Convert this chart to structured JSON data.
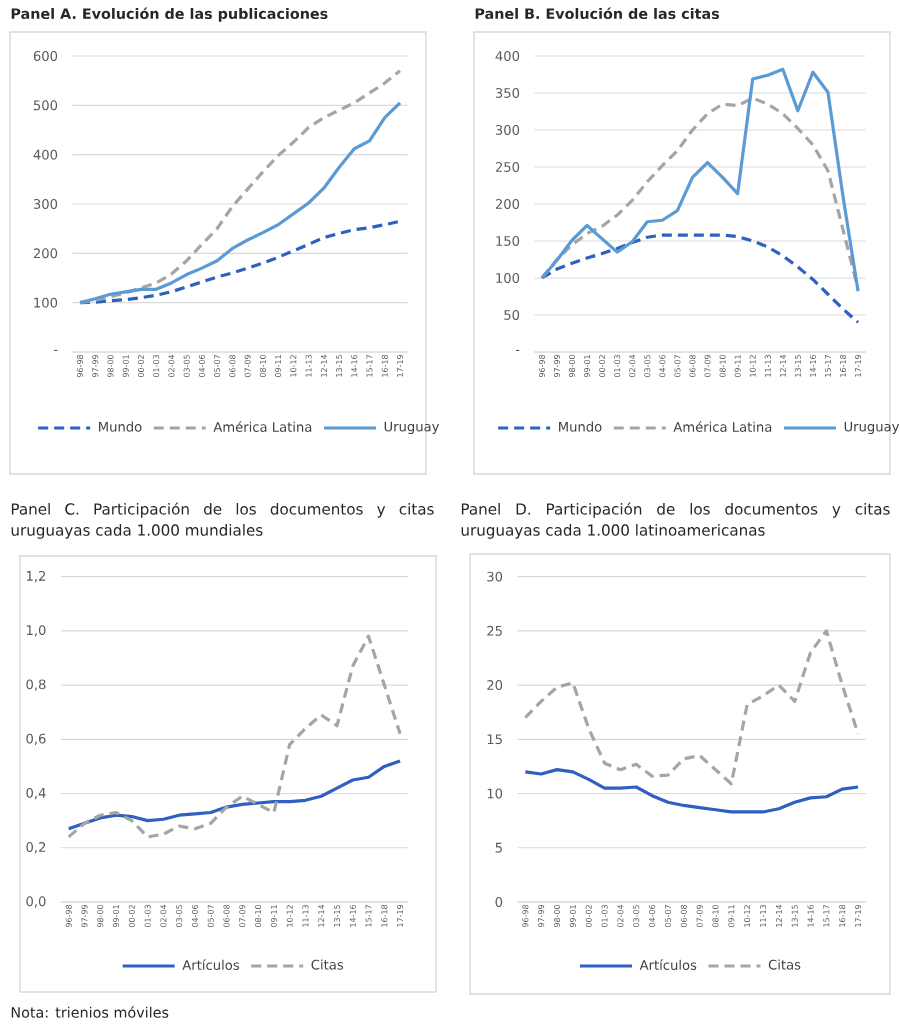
{
  "chart_data": [
    {
      "type": "line",
      "title": "Panel A. Evolución de las publicaciones",
      "categories": [
        "96-98",
        "97-99",
        "98-00",
        "99-01",
        "00-02",
        "01-03",
        "02-04",
        "03-05",
        "04-06",
        "05-07",
        "06-08",
        "07-09",
        "08-10",
        "09-11",
        "10-12",
        "11-13",
        "12-14",
        "13-15",
        "14-16",
        "15-17",
        "16-18",
        "17-19"
      ],
      "series": [
        {
          "name": "Mundo",
          "color": "#2f5fbf",
          "line_style": "dashed",
          "values": [
            100,
            101,
            104,
            106,
            110,
            115,
            122,
            132,
            142,
            152,
            160,
            170,
            180,
            192,
            205,
            218,
            232,
            240,
            248,
            252,
            258,
            265
          ]
        },
        {
          "name": "América Latina",
          "color": "#a5a5a5",
          "line_style": "dashed",
          "values": [
            100,
            105,
            112,
            120,
            130,
            140,
            158,
            185,
            218,
            250,
            295,
            330,
            365,
            398,
            425,
            455,
            475,
            490,
            505,
            525,
            545,
            570
          ]
        },
        {
          "name": "Uruguay",
          "color": "#5b9bd5",
          "line_style": "solid",
          "values": [
            100,
            108,
            117,
            122,
            127,
            127,
            140,
            157,
            170,
            185,
            210,
            227,
            242,
            258,
            280,
            302,
            332,
            374,
            412,
            428,
            475,
            505
          ]
        }
      ],
      "ylim": [
        0,
        600
      ],
      "yticks": [
        {
          "value": 0,
          "label": "-"
        },
        100,
        200,
        300,
        400,
        500,
        600
      ],
      "grid": "y",
      "legend": "bottom"
    },
    {
      "type": "line",
      "title": "Panel B. Evolución de las citas",
      "categories": [
        "96-98",
        "97-99",
        "98-00",
        "99-01",
        "00-02",
        "01-03",
        "02-04",
        "03-05",
        "04-06",
        "05-07",
        "06-08",
        "07-09",
        "08-10",
        "09-11",
        "10-12",
        "11-13",
        "12-14",
        "13-15",
        "14-16",
        "15-17",
        "16-18",
        "17-19"
      ],
      "series": [
        {
          "name": "Mundo",
          "color": "#2f5fbf",
          "line_style": "dashed",
          "values": [
            100,
            112,
            120,
            127,
            133,
            140,
            148,
            155,
            158,
            158,
            158,
            158,
            158,
            156,
            150,
            142,
            130,
            115,
            98,
            78,
            58,
            40
          ]
        },
        {
          "name": "América Latina",
          "color": "#a5a5a5",
          "line_style": "dashed",
          "values": [
            100,
            125,
            145,
            160,
            170,
            185,
            205,
            230,
            252,
            272,
            300,
            322,
            335,
            333,
            343,
            335,
            322,
            302,
            280,
            245,
            165,
            85
          ]
        },
        {
          "name": "Uruguay",
          "color": "#5b9bd5",
          "line_style": "solid",
          "values": [
            100,
            124,
            151,
            171,
            153,
            135,
            149,
            176,
            178,
            191,
            236,
            256,
            236,
            214,
            369,
            374,
            382,
            326,
            378,
            351,
            210,
            82
          ]
        }
      ],
      "ylim": [
        0,
        400
      ],
      "yticks": [
        {
          "value": 0,
          "label": "-"
        },
        50,
        100,
        150,
        200,
        250,
        300,
        350,
        400
      ],
      "grid": "y",
      "legend": "bottom"
    },
    {
      "type": "line",
      "title": "Panel C. Participación de los documentos y citas uruguayas cada 1.000 mundiales",
      "categories": [
        "96-98",
        "97-99",
        "98-00",
        "99-01",
        "00-02",
        "01-03",
        "02-04",
        "03-05",
        "04-06",
        "05-07",
        "06-08",
        "07-09",
        "08-10",
        "09-11",
        "10-12",
        "11-13",
        "12-14",
        "13-15",
        "14-16",
        "15-17",
        "16-18",
        "17-19"
      ],
      "series": [
        {
          "name": "Artículos",
          "color": "#2f5fbf",
          "line_style": "solid",
          "values": [
            0.27,
            0.29,
            0.31,
            0.32,
            0.315,
            0.3,
            0.305,
            0.32,
            0.325,
            0.33,
            0.35,
            0.36,
            0.365,
            0.37,
            0.37,
            0.375,
            0.39,
            0.42,
            0.45,
            0.46,
            0.5,
            0.52
          ]
        },
        {
          "name": "Citas",
          "color": "#a5a5a5",
          "line_style": "dashed",
          "values": [
            0.24,
            0.29,
            0.32,
            0.33,
            0.3,
            0.24,
            0.25,
            0.28,
            0.27,
            0.29,
            0.35,
            0.39,
            0.36,
            0.33,
            0.58,
            0.64,
            0.69,
            0.65,
            0.87,
            0.98,
            0.8,
            0.62
          ]
        }
      ],
      "ylim": [
        0,
        1.2
      ],
      "yticks": [
        {
          "value": 0,
          "label": "0,0"
        },
        {
          "value": 0.2,
          "label": "0,2"
        },
        {
          "value": 0.4,
          "label": "0,4"
        },
        {
          "value": 0.6,
          "label": "0,6"
        },
        {
          "value": 0.8,
          "label": "0,8"
        },
        {
          "value": 1.0,
          "label": "1,0"
        },
        {
          "value": 1.2,
          "label": "1,2"
        }
      ],
      "grid": "y",
      "legend": "bottom",
      "annotations": [
        "Nota: trienios móviles"
      ]
    },
    {
      "type": "line",
      "title": "Panel D. Participación de los documentos y citas uruguayas cada 1.000 latinoamericanas",
      "categories": [
        "96-98",
        "97-99",
        "98-00",
        "99-01",
        "00-02",
        "01-03",
        "02-04",
        "03-05",
        "04-06",
        "05-07",
        "06-08",
        "07-09",
        "08-10",
        "09-11",
        "10-12",
        "11-13",
        "12-14",
        "13-15",
        "14-16",
        "15-17",
        "16-18",
        "17-19"
      ],
      "series": [
        {
          "name": "Artículos",
          "color": "#2f5fbf",
          "line_style": "solid",
          "values": [
            12.0,
            11.8,
            12.2,
            12.0,
            11.3,
            10.5,
            10.5,
            10.6,
            9.8,
            9.2,
            8.9,
            8.7,
            8.5,
            8.3,
            8.3,
            8.3,
            8.6,
            9.2,
            9.6,
            9.7,
            10.4,
            10.6
          ]
        },
        {
          "name": "Citas",
          "color": "#a5a5a5",
          "line_style": "dashed",
          "values": [
            17.0,
            18.5,
            19.8,
            20.2,
            16.0,
            12.8,
            12.2,
            12.7,
            11.6,
            11.7,
            13.2,
            13.5,
            12.2,
            10.9,
            18.2,
            19.0,
            20.0,
            18.5,
            23.0,
            25.0,
            20.0,
            15.5
          ]
        }
      ],
      "ylim": [
        0,
        30
      ],
      "yticks": [
        0,
        5,
        10,
        15,
        20,
        25,
        30
      ],
      "grid": "y",
      "legend": "bottom"
    }
  ]
}
